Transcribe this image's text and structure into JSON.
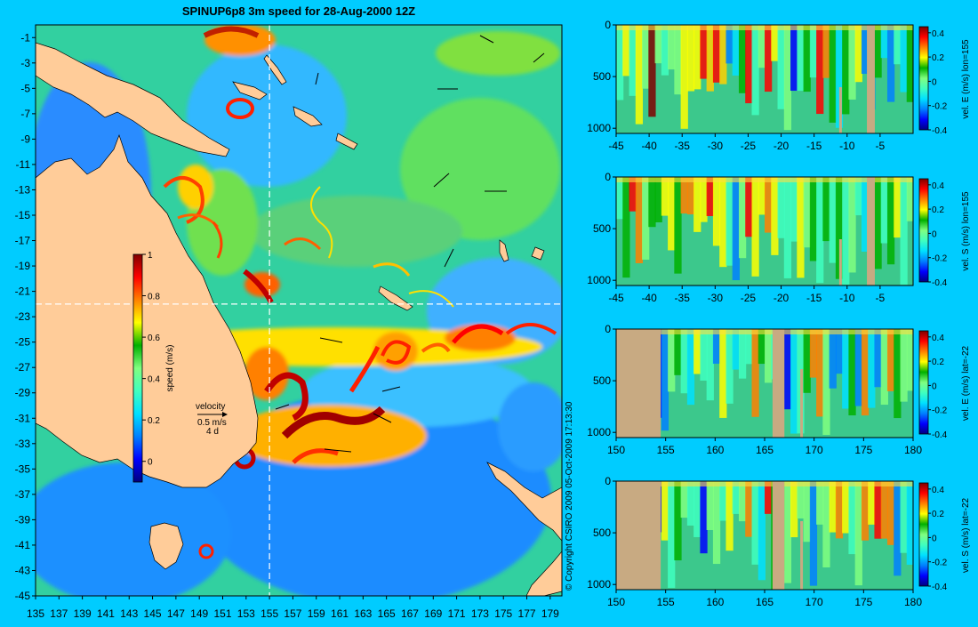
{
  "title": "SPINUP6p8 3m speed for 28-Aug-2000 12Z",
  "copyright": "© Copyright CSIRO 2009  05-Oct-2009 17:13:30",
  "colors": {
    "background": "#00ccff",
    "land": "#ffcc99",
    "section_land": "#c8aa82",
    "colormap": [
      "#00007f",
      "#0000ff",
      "#0080ff",
      "#00e0ff",
      "#40ffbf",
      "#80ff80",
      "#00b000",
      "#ffff00",
      "#ff8000",
      "#ff0000",
      "#800000"
    ]
  },
  "chart_data": [
    {
      "type": "heatmap",
      "id": "speed-map",
      "title": "SPINUP6p8 3m speed for 28-Aug-2000 12Z",
      "x_ticks": [
        "135",
        "137",
        "139",
        "141",
        "143",
        "145",
        "147",
        "149",
        "151",
        "153",
        "155",
        "157",
        "159",
        "161",
        "163",
        "165",
        "167",
        "169",
        "171",
        "173",
        "175",
        "177",
        "179"
      ],
      "y_ticks": [
        "-1",
        "-3",
        "-5",
        "-7",
        "-9",
        "-11",
        "-13",
        "-15",
        "-17",
        "-19",
        "-21",
        "-23",
        "-25",
        "-27",
        "-29",
        "-31",
        "-33",
        "-35",
        "-37",
        "-39",
        "-41",
        "-43",
        "-45"
      ],
      "xlim": [
        135,
        180
      ],
      "ylim": [
        -45,
        0
      ],
      "section_lines": {
        "lon": 155,
        "lat": -22
      },
      "colorbar": {
        "label": "speed (m/s)",
        "ticks": [
          "1",
          "0.8",
          "0.6",
          "0.4",
          "0.2",
          "0"
        ],
        "range": [
          -0.1,
          1.0
        ]
      },
      "velocity_key": {
        "label": "velocity",
        "scale": "0.5 m/s",
        "time": "4 d"
      }
    },
    {
      "type": "heatmap",
      "id": "section-ve-lon",
      "x_ticks": [
        "-45",
        "-40",
        "-35",
        "-30",
        "-25",
        "-20",
        "-15",
        "-10",
        "-5"
      ],
      "y_ticks": [
        "0",
        "500",
        "1000"
      ],
      "xlim": [
        -45,
        0
      ],
      "ylim": [
        1050,
        0
      ],
      "colorbar": {
        "label": "vel. E (m/s) lon=155",
        "ticks": [
          "0.4",
          "0.2",
          "0",
          "-0.2",
          "-0.4"
        ],
        "range": [
          -0.4,
          0.45
        ]
      }
    },
    {
      "type": "heatmap",
      "id": "section-vs-lon",
      "x_ticks": [
        "-45",
        "-40",
        "-35",
        "-30",
        "-25",
        "-20",
        "-15",
        "-10",
        "-5"
      ],
      "y_ticks": [
        "0",
        "500",
        "1000"
      ],
      "xlim": [
        -45,
        0
      ],
      "ylim": [
        1050,
        0
      ],
      "colorbar": {
        "label": "vel. S (m/s) lon=155",
        "ticks": [
          "0.4",
          "0.2",
          "0",
          "-0.2",
          "-0.4"
        ],
        "range": [
          -0.4,
          0.45
        ]
      }
    },
    {
      "type": "heatmap",
      "id": "section-ve-lat",
      "x_ticks": [
        "150",
        "155",
        "160",
        "165",
        "170",
        "175",
        "180"
      ],
      "y_ticks": [
        "0",
        "500",
        "1000"
      ],
      "xlim": [
        150,
        180
      ],
      "ylim": [
        1050,
        0
      ],
      "colorbar": {
        "label": "vel. E (m/s) lat=-22",
        "ticks": [
          "0.4",
          "0.2",
          "0",
          "-0.2",
          "-0.4"
        ],
        "range": [
          -0.4,
          0.45
        ]
      }
    },
    {
      "type": "heatmap",
      "id": "section-vs-lat",
      "x_ticks": [
        "150",
        "155",
        "160",
        "165",
        "170",
        "175",
        "180"
      ],
      "y_ticks": [
        "0",
        "500",
        "1000"
      ],
      "xlim": [
        150,
        180
      ],
      "ylim": [
        1050,
        0
      ],
      "colorbar": {
        "label": "vel. S (m/s) lat=-22",
        "ticks": [
          "0.4",
          "0.2",
          "0",
          "-0.2",
          "-0.4"
        ],
        "range": [
          -0.4,
          0.45
        ]
      }
    }
  ]
}
